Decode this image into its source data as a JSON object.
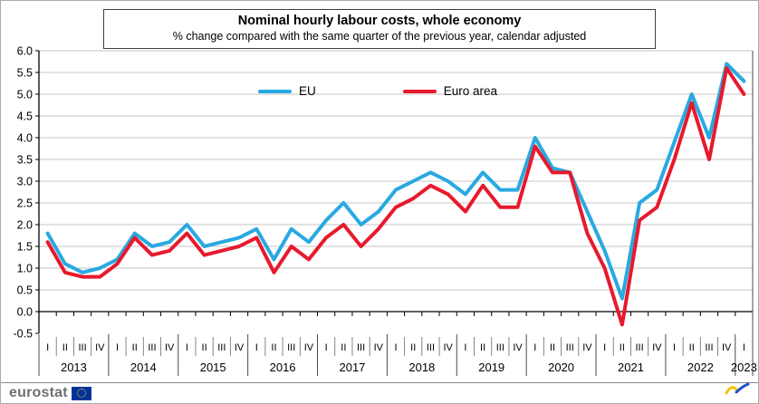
{
  "title": "Nominal hourly labour costs, whole economy",
  "subtitle": "% change compared with the same quarter of the previous year, calendar adjusted",
  "legend": [
    {
      "label": "EU",
      "color": "#29A9E1"
    },
    {
      "label": "Euro area",
      "color": "#E8192C"
    }
  ],
  "footer": {
    "logo_text": "eurostat"
  },
  "chart_data": {
    "type": "line",
    "title": "Nominal hourly labour costs, whole economy",
    "subtitle": "% change compared with the same quarter of the previous year, calendar adjusted",
    "ylabel": "",
    "xlabel": "",
    "ylim": [
      -0.5,
      6.0
    ],
    "grid": true,
    "legend_position": "top-center-inside",
    "y_ticks": [
      "6.0",
      "5.5",
      "5.0",
      "4.5",
      "4.0",
      "3.5",
      "3.0",
      "2.5",
      "2.0",
      "1.5",
      "1.0",
      "0.5",
      "0.0",
      "-0.5"
    ],
    "years": [
      {
        "label": "2013",
        "quarters": [
          "I",
          "II",
          "III",
          "IV"
        ]
      },
      {
        "label": "2014",
        "quarters": [
          "I",
          "II",
          "III",
          "IV"
        ]
      },
      {
        "label": "2015",
        "quarters": [
          "I",
          "II",
          "III",
          "IV"
        ]
      },
      {
        "label": "2016",
        "quarters": [
          "I",
          "II",
          "III",
          "IV"
        ]
      },
      {
        "label": "2017",
        "quarters": [
          "I",
          "II",
          "III",
          "IV"
        ]
      },
      {
        "label": "2018",
        "quarters": [
          "I",
          "II",
          "III",
          "IV"
        ]
      },
      {
        "label": "2019",
        "quarters": [
          "I",
          "II",
          "III",
          "IV"
        ]
      },
      {
        "label": "2020",
        "quarters": [
          "I",
          "II",
          "III",
          "IV"
        ]
      },
      {
        "label": "2021",
        "quarters": [
          "I",
          "II",
          "III",
          "IV"
        ]
      },
      {
        "label": "2022",
        "quarters": [
          "I",
          "II",
          "III",
          "IV"
        ]
      },
      {
        "label": "2023",
        "quarters": [
          "I"
        ]
      }
    ],
    "series": [
      {
        "name": "EU",
        "color": "#29A9E1",
        "values": [
          1.8,
          1.1,
          0.9,
          1.0,
          1.2,
          1.8,
          1.5,
          1.6,
          2.0,
          1.5,
          1.6,
          1.7,
          1.9,
          1.2,
          1.9,
          1.6,
          2.1,
          2.5,
          2.0,
          2.3,
          2.8,
          3.0,
          3.2,
          3.0,
          2.7,
          3.2,
          2.8,
          2.8,
          4.0,
          3.3,
          3.2,
          2.3,
          1.4,
          0.3,
          2.5,
          2.8,
          3.9,
          5.0,
          4.0,
          5.7,
          5.3
        ]
      },
      {
        "name": "Euro area",
        "color": "#E8192C",
        "values": [
          1.6,
          0.9,
          0.8,
          0.8,
          1.1,
          1.7,
          1.3,
          1.4,
          1.8,
          1.3,
          1.4,
          1.5,
          1.7,
          0.9,
          1.5,
          1.2,
          1.7,
          2.0,
          1.5,
          1.9,
          2.4,
          2.6,
          2.9,
          2.7,
          2.3,
          2.9,
          2.4,
          2.4,
          3.8,
          3.2,
          3.2,
          1.8,
          1.0,
          -0.3,
          2.1,
          2.4,
          3.5,
          4.8,
          3.5,
          5.6,
          5.0
        ]
      }
    ]
  }
}
